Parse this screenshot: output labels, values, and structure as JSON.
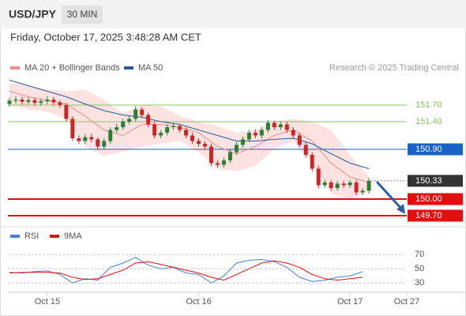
{
  "header": {
    "symbol": "USD/JPY",
    "interval": "30 MIN",
    "timestamp": "Friday, October 17, 2025 3:48:28 AM CET",
    "credit": "Research © 2025 Trading Central"
  },
  "chart_data": [
    {
      "type": "candlestick",
      "up_color": "#2e7d32",
      "down_color": "#c62828",
      "open": [
        151.72,
        151.78,
        151.8,
        151.76,
        151.79,
        151.74,
        151.77,
        151.8,
        151.75,
        151.7,
        151.45,
        151.1,
        151.05,
        151.12,
        151.08,
        150.95,
        151.05,
        151.25,
        151.3,
        151.4,
        151.45,
        151.62,
        151.52,
        151.35,
        151.15,
        151.2,
        151.3,
        151.32,
        151.25,
        151.15,
        151.05,
        151.0,
        150.95,
        150.65,
        150.62,
        150.7,
        150.85,
        150.98,
        151.08,
        151.2,
        151.15,
        151.25,
        151.38,
        151.3,
        151.35,
        151.25,
        151.15,
        150.98,
        150.8,
        150.55,
        150.25,
        150.3,
        150.2,
        150.28,
        150.25,
        150.3,
        150.12,
        150.15
      ],
      "close": [
        151.78,
        151.8,
        151.76,
        151.79,
        151.74,
        151.77,
        151.8,
        151.75,
        151.7,
        151.45,
        151.1,
        151.05,
        151.12,
        151.08,
        150.95,
        151.05,
        151.25,
        151.3,
        151.4,
        151.45,
        151.62,
        151.52,
        151.35,
        151.15,
        151.2,
        151.3,
        151.32,
        151.25,
        151.15,
        151.05,
        151.0,
        150.95,
        150.65,
        150.62,
        150.7,
        150.85,
        150.98,
        151.08,
        151.2,
        151.15,
        151.25,
        151.38,
        151.3,
        151.35,
        151.25,
        151.15,
        150.98,
        150.8,
        150.55,
        150.25,
        150.3,
        150.2,
        150.28,
        150.25,
        150.3,
        150.12,
        150.15,
        150.33
      ],
      "high": [
        151.83,
        151.86,
        151.85,
        151.84,
        151.84,
        151.82,
        151.86,
        151.85,
        151.79,
        151.74,
        151.5,
        151.15,
        151.17,
        151.18,
        151.12,
        151.1,
        151.3,
        151.36,
        151.45,
        151.5,
        151.68,
        151.66,
        151.56,
        151.4,
        151.25,
        151.35,
        151.38,
        151.36,
        151.3,
        151.2,
        151.1,
        151.05,
        151.0,
        150.7,
        150.75,
        150.9,
        151.03,
        151.13,
        151.25,
        151.26,
        151.3,
        151.43,
        151.42,
        151.4,
        151.4,
        151.3,
        151.2,
        151.03,
        150.85,
        150.6,
        150.35,
        150.35,
        150.33,
        150.33,
        150.35,
        150.35,
        150.2,
        150.38
      ],
      "low": [
        151.67,
        151.73,
        151.71,
        151.71,
        151.69,
        151.69,
        151.72,
        151.7,
        151.65,
        151.4,
        151.05,
        151.0,
        151.0,
        151.03,
        150.9,
        150.9,
        151.0,
        151.2,
        151.25,
        151.35,
        151.4,
        151.47,
        151.3,
        151.1,
        151.1,
        151.15,
        151.25,
        151.2,
        151.1,
        151.0,
        150.95,
        150.9,
        150.6,
        150.57,
        150.57,
        150.65,
        150.8,
        150.93,
        151.03,
        151.1,
        151.1,
        151.2,
        151.25,
        151.25,
        151.2,
        151.1,
        150.93,
        150.75,
        150.5,
        150.2,
        150.2,
        150.15,
        150.15,
        150.2,
        150.2,
        150.07,
        150.07,
        150.1
      ],
      "series": [
        {
          "name": "MA 20 + Bollinger Bands",
          "color": "#f28b8b",
          "band_color": "#fde2e2",
          "x": [
            0,
            3,
            6,
            9,
            12,
            15,
            18,
            21,
            24,
            27,
            30,
            33,
            36,
            39,
            42,
            45,
            48,
            51,
            54,
            57
          ],
          "values": [
            151.95,
            151.85,
            151.78,
            151.72,
            151.5,
            151.25,
            151.15,
            151.35,
            151.35,
            151.3,
            151.2,
            150.95,
            150.82,
            150.95,
            151.15,
            151.25,
            151.05,
            150.65,
            150.4,
            150.3
          ],
          "upper": [
            152.1,
            152.05,
            151.98,
            151.95,
            151.98,
            151.8,
            151.55,
            151.7,
            151.68,
            151.5,
            151.4,
            151.32,
            151.2,
            151.25,
            151.4,
            151.45,
            151.4,
            151.25,
            150.8,
            150.4
          ],
          "lower": [
            151.7,
            151.62,
            151.58,
            151.45,
            150.95,
            150.78,
            150.85,
            150.95,
            151.0,
            151.05,
            150.85,
            150.55,
            150.5,
            150.6,
            150.9,
            151.05,
            150.65,
            150.1,
            150.0,
            150.15
          ]
        },
        {
          "name": "MA 50",
          "color": "#2c5b9a",
          "x": [
            0,
            3,
            6,
            9,
            12,
            15,
            18,
            21,
            24,
            27,
            30,
            33,
            36,
            39,
            42,
            45,
            48,
            51,
            54,
            57
          ],
          "values": [
            152.15,
            152.05,
            151.95,
            151.85,
            151.72,
            151.6,
            151.52,
            151.48,
            151.4,
            151.35,
            151.25,
            151.15,
            151.05,
            151.05,
            151.08,
            151.1,
            151.0,
            150.82,
            150.65,
            150.55
          ]
        }
      ],
      "levels": [
        {
          "value": 151.7,
          "label": "151.70",
          "color": "#8cc068",
          "box": false,
          "width": 1,
          "dotted": false
        },
        {
          "value": 151.4,
          "label": "151.40",
          "color": "#8cc068",
          "box": false,
          "width": 1,
          "dotted": false
        },
        {
          "value": 150.9,
          "label": "150.90",
          "color": "#1a63c4",
          "box": true,
          "width": 1,
          "dotted": false
        },
        {
          "value": 150.33,
          "label": "150.33",
          "color": "#333333",
          "box": true,
          "width": 1,
          "dotted": true
        },
        {
          "value": 150.0,
          "label": "150.00",
          "color": "#e01010",
          "box": true,
          "width": 2,
          "dotted": false
        },
        {
          "value": 149.7,
          "label": "149.70",
          "color": "#e01010",
          "box": true,
          "width": 2,
          "dotted": false
        }
      ],
      "xlim": [
        0,
        63
      ],
      "ylim": [
        149.6,
        152.25
      ]
    },
    {
      "type": "line",
      "ylim": [
        24,
        78
      ],
      "yticks": [
        30,
        50,
        70
      ],
      "xlim": [
        0,
        63
      ],
      "xticks": [
        {
          "value": 6,
          "label": "Oct 15"
        },
        {
          "value": 30,
          "label": "Oct 16"
        },
        {
          "value": 54,
          "label": "Oct 17"
        },
        {
          "value": 63,
          "label": "Oct 27"
        }
      ],
      "series": [
        {
          "name": "RSI",
          "color": "#4a7fd4",
          "x": [
            0,
            2,
            4,
            6,
            8,
            10,
            12,
            14,
            16,
            18,
            20,
            22,
            24,
            26,
            28,
            30,
            32,
            34,
            36,
            38,
            40,
            42,
            44,
            46,
            48,
            50,
            52,
            54,
            56
          ],
          "values": [
            45,
            44,
            46,
            47,
            42,
            30,
            36,
            34,
            52,
            58,
            66,
            55,
            50,
            52,
            44,
            42,
            30,
            40,
            58,
            62,
            63,
            60,
            52,
            38,
            32,
            34,
            38,
            40,
            46
          ]
        },
        {
          "name": "9MA",
          "color": "#e01010",
          "x": [
            0,
            2,
            4,
            6,
            8,
            10,
            12,
            14,
            16,
            18,
            20,
            22,
            24,
            26,
            28,
            30,
            32,
            34,
            36,
            38,
            40,
            42,
            44,
            46,
            48,
            50,
            52,
            54,
            56
          ],
          "values": [
            44,
            45,
            45,
            45,
            44,
            38,
            35,
            36,
            42,
            48,
            58,
            60,
            56,
            52,
            48,
            44,
            38,
            34,
            42,
            50,
            58,
            61,
            58,
            52,
            42,
            36,
            34,
            36,
            38
          ]
        }
      ]
    }
  ]
}
